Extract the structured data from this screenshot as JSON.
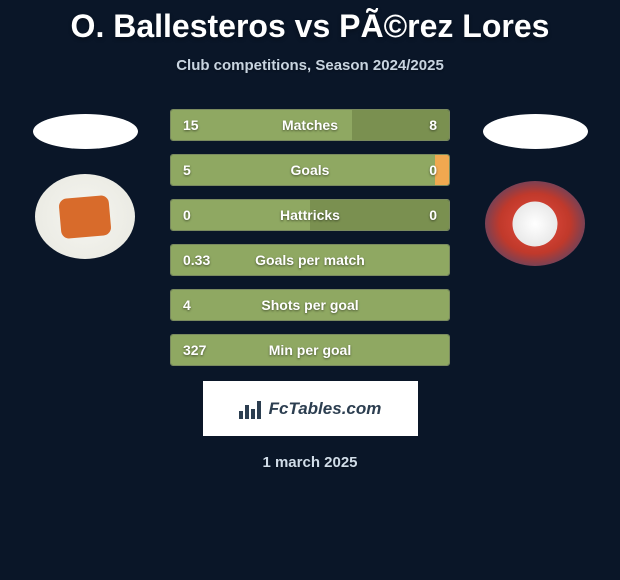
{
  "header": {
    "title": "O. Ballesteros vs PÃ©rez Lores",
    "subtitle": "Club competitions, Season 2024/2025"
  },
  "stats": [
    {
      "label": "Matches",
      "left_value": "15",
      "right_value": "8",
      "left_fill_pct": 65,
      "right_fill_pct": 35,
      "left_color": "#8fa862",
      "right_color": "#7a9050"
    },
    {
      "label": "Goals",
      "left_value": "5",
      "right_value": "0",
      "left_fill_pct": 95,
      "right_fill_pct": 5,
      "left_color": "#8fa862",
      "right_color": "#f0a850"
    },
    {
      "label": "Hattricks",
      "left_value": "0",
      "right_value": "0",
      "left_fill_pct": 50,
      "right_fill_pct": 50,
      "left_color": "#8fa862",
      "right_color": "#7a9050"
    },
    {
      "label": "Goals per match",
      "left_value": "0.33",
      "right_value": "",
      "left_fill_pct": 100,
      "right_fill_pct": 0,
      "left_color": "#8fa862",
      "right_color": "#7a9050"
    },
    {
      "label": "Shots per goal",
      "left_value": "4",
      "right_value": "",
      "left_fill_pct": 100,
      "right_fill_pct": 0,
      "left_color": "#8fa862",
      "right_color": "#7a9050"
    },
    {
      "label": "Min per goal",
      "left_value": "327",
      "right_value": "",
      "left_fill_pct": 100,
      "right_fill_pct": 0,
      "left_color": "#8fa862",
      "right_color": "#7a9050"
    }
  ],
  "branding": {
    "text": "FcTables.com"
  },
  "footer": {
    "date": "1 march 2025"
  },
  "styling": {
    "background_color": "#0a1628",
    "title_color": "#ffffff",
    "title_fontsize": 32,
    "subtitle_color": "#c8d4e0",
    "subtitle_fontsize": 15,
    "stat_border_color": "#7a8a5f",
    "stat_text_color": "#ffffff",
    "stat_fontsize": 14,
    "date_color": "#d0dce8",
    "date_fontsize": 15,
    "branding_bg": "#ffffff",
    "branding_text_color": "#2c3e50"
  }
}
